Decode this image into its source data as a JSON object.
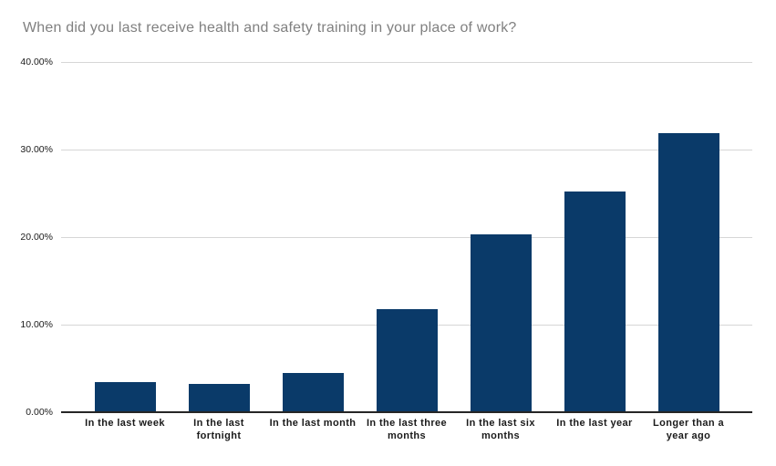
{
  "chart_data": {
    "type": "bar",
    "title": "When did you last receive health and safety training in your place of work?",
    "categories": [
      "In the last week",
      "In the last fortnight",
      "In the last month",
      "In the last three months",
      "In the last six months",
      "In the last year",
      "Longer than a year ago"
    ],
    "category_lines": [
      [
        "In the last week"
      ],
      [
        "In the last",
        "fortnight"
      ],
      [
        "In the last month"
      ],
      [
        "In the last three",
        "months"
      ],
      [
        "In the last six",
        "months"
      ],
      [
        "In the last year"
      ],
      [
        "Longer than a",
        "year ago"
      ]
    ],
    "values": [
      3.3,
      3.1,
      4.4,
      11.7,
      20.2,
      25.1,
      31.8
    ],
    "unit": "%",
    "xlabel": "",
    "ylabel": "",
    "ylim": [
      0,
      40
    ],
    "yticks": [
      {
        "value": 0,
        "label": "0.00%"
      },
      {
        "value": 10,
        "label": "10.00%"
      },
      {
        "value": 20,
        "label": "20.00%"
      },
      {
        "value": 30,
        "label": "30.00%"
      },
      {
        "value": 40,
        "label": "40.00%"
      }
    ],
    "grid": true,
    "legend": "none"
  },
  "style": {
    "bar_color": "#0a3a69",
    "gridline_color": "#d6d6d6",
    "axis_line_color": "#262626",
    "title_color": "#808080",
    "tick_label_color": "#1a1a1a",
    "background": "#ffffff"
  }
}
